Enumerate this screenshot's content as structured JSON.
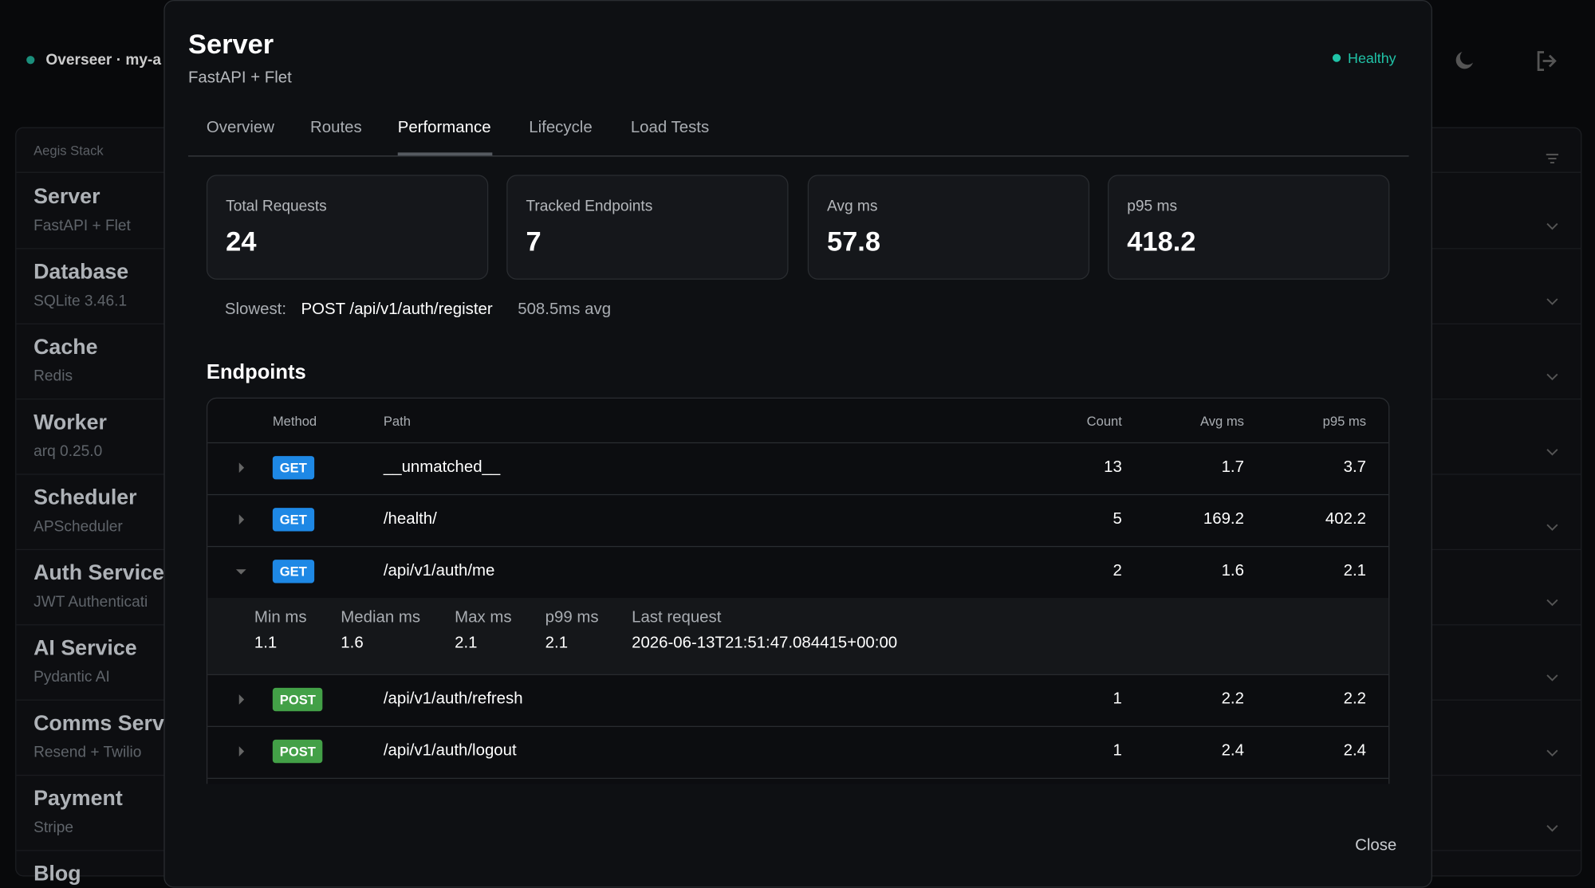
{
  "header": {
    "app_title": "Overseer · my-a"
  },
  "sidebar": {
    "section": "Aegis Stack",
    "items": [
      {
        "name": "Server",
        "detail": "FastAPI + Flet"
      },
      {
        "name": "Database",
        "detail": "SQLite 3.46.1"
      },
      {
        "name": "Cache",
        "detail": "Redis"
      },
      {
        "name": "Worker",
        "detail": "arq 0.25.0"
      },
      {
        "name": "Scheduler",
        "detail": "APScheduler"
      },
      {
        "name": "Auth Service",
        "detail": "JWT Authenticati"
      },
      {
        "name": "AI Service",
        "detail": "Pydantic AI"
      },
      {
        "name": "Comms Servi",
        "detail": "Resend + Twilio"
      },
      {
        "name": "Payment",
        "detail": "Stripe"
      },
      {
        "name": "Blog"
      }
    ]
  },
  "modal": {
    "title": "Server",
    "subtitle": "FastAPI + Flet",
    "status": "Healthy",
    "tabs": [
      "Overview",
      "Routes",
      "Performance",
      "Lifecycle",
      "Load Tests"
    ],
    "active_tab": 2,
    "stats": [
      {
        "label": "Total Requests",
        "value": 24
      },
      {
        "label": "Tracked Endpoints",
        "value": 7
      },
      {
        "label": "Avg ms",
        "value": 57.8
      },
      {
        "label": "p95 ms",
        "value": 418.2
      }
    ],
    "slowest": {
      "label": "Slowest:",
      "endpoint": "POST /api/v1/auth/register",
      "avg": "508.5ms avg"
    },
    "section_title": "Endpoints",
    "table": {
      "columns": [
        "Method",
        "Path",
        "Count",
        "Avg ms",
        "p95 ms"
      ],
      "rows": [
        {
          "method": "GET",
          "path": "__unmatched__",
          "count": 13,
          "avg": 1.7,
          "p95": 3.7
        },
        {
          "method": "GET",
          "path": "/health/",
          "count": 5,
          "avg": 169.2,
          "p95": 402.2
        },
        {
          "method": "GET",
          "path": "/api/v1/auth/me",
          "count": 2,
          "avg": 1.6,
          "p95": 2.1,
          "expanded": true,
          "details": [
            {
              "label": "Min ms",
              "value": 1.1
            },
            {
              "label": "Median ms",
              "value": 1.6
            },
            {
              "label": "Max ms",
              "value": 2.1
            },
            {
              "label": "p99 ms",
              "value": 2.1
            },
            {
              "label": "Last request",
              "value": "2026-06-13T21:51:47.084415+00:00"
            }
          ]
        },
        {
          "method": "POST",
          "path": "/api/v1/auth/refresh",
          "count": 1,
          "avg": 2.2,
          "p95": 2.2
        },
        {
          "method": "POST",
          "path": "/api/v1/auth/logout",
          "count": 1,
          "avg": 2.4,
          "p95": 2.4
        }
      ]
    },
    "close": "Close"
  }
}
